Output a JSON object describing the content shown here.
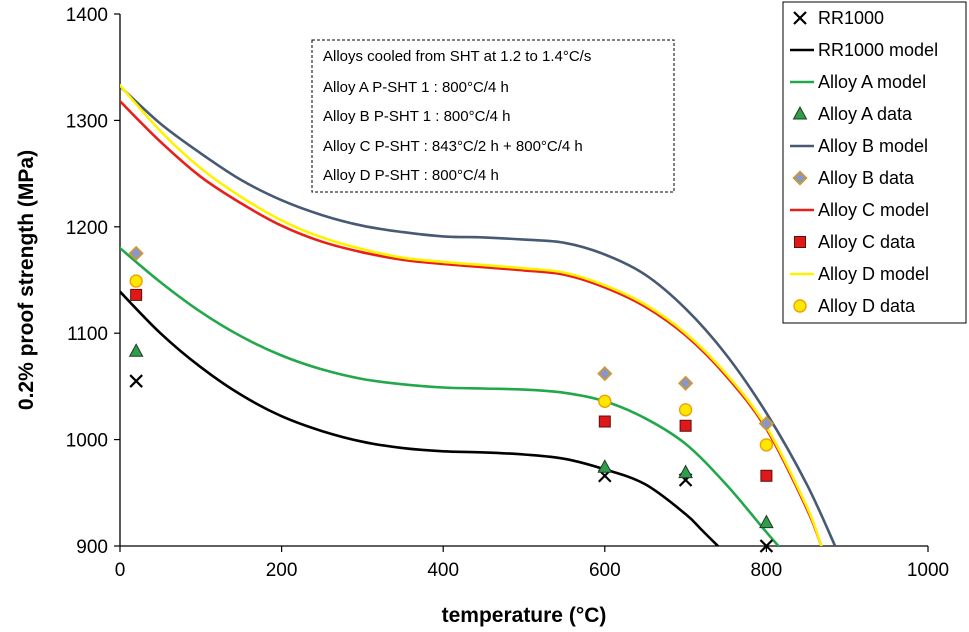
{
  "chart_data": {
    "type": "scatter",
    "xlabel": "temperature (°C)",
    "ylabel": "0.2% proof strength (MPa)",
    "xlim": [
      0,
      1000
    ],
    "ylim": [
      900,
      1400
    ],
    "xticks": [
      0,
      200,
      400,
      600,
      800,
      1000
    ],
    "yticks": [
      900,
      1000,
      1100,
      1200,
      1300,
      1400
    ],
    "xtick_labels": [
      "0",
      "200",
      "400",
      "600",
      "800",
      "1000"
    ],
    "ytick_labels": [
      "900",
      "1000",
      "1100",
      "1200",
      "1300",
      "1400"
    ],
    "grid": false,
    "legend_position": "top-right",
    "annotation": [
      "Alloys cooled from SHT at 1.2 to 1.4°C/s",
      "Alloy A P-SHT 1 : 800°C/4 h",
      "Alloy B P-SHT 1 : 800°C/4 h",
      "Alloy C P-SHT : 843°C/2 h + 800°C/4 h",
      "Alloy D P-SHT : 800°C/4 h"
    ],
    "series": [
      {
        "name": "RR1000",
        "kind": "marker",
        "marker": "x",
        "color": "#000000",
        "x": [
          20,
          600,
          700,
          800
        ],
        "y": [
          1055,
          966,
          962,
          900
        ]
      },
      {
        "name": "RR1000 model",
        "kind": "line",
        "color": "#000000",
        "x": [
          0,
          50,
          100,
          150,
          200,
          250,
          300,
          350,
          400,
          450,
          500,
          550,
          600,
          650,
          700,
          720,
          740
        ],
        "y": [
          1139,
          1100,
          1068,
          1042,
          1022,
          1008,
          998,
          992,
          989,
          988,
          986,
          982,
          972,
          958,
          930,
          915,
          900
        ]
      },
      {
        "name": "Alloy A model",
        "kind": "line",
        "color": "#22A84A",
        "x": [
          0,
          50,
          100,
          150,
          200,
          250,
          300,
          350,
          400,
          450,
          500,
          550,
          600,
          650,
          700,
          750,
          800,
          815
        ],
        "y": [
          1180,
          1148,
          1120,
          1097,
          1079,
          1066,
          1057,
          1052,
          1049,
          1048,
          1047,
          1044,
          1036,
          1020,
          996,
          958,
          913,
          900
        ]
      },
      {
        "name": "Alloy A data",
        "kind": "marker",
        "marker": "triangle",
        "color": "#2E9E4A",
        "x": [
          20,
          600,
          700,
          800
        ],
        "y": [
          1083,
          974,
          969,
          922
        ]
      },
      {
        "name": "Alloy B model",
        "kind": "line",
        "color": "#475A73",
        "x": [
          0,
          50,
          100,
          150,
          200,
          250,
          300,
          350,
          400,
          450,
          500,
          550,
          600,
          650,
          700,
          750,
          800,
          850,
          885
        ],
        "y": [
          1332,
          1297,
          1269,
          1244,
          1225,
          1211,
          1201,
          1195,
          1191,
          1190,
          1188,
          1185,
          1174,
          1155,
          1123,
          1080,
          1025,
          958,
          900
        ]
      },
      {
        "name": "Alloy B data",
        "kind": "marker",
        "marker": "diamond",
        "color": "#8896C8",
        "x": [
          20,
          600,
          700,
          800
        ],
        "y": [
          1175,
          1062,
          1053,
          1015
        ]
      },
      {
        "name": "Alloy C model",
        "kind": "line",
        "color": "#E8201A",
        "x": [
          0,
          50,
          100,
          150,
          200,
          250,
          300,
          350,
          400,
          450,
          500,
          550,
          600,
          650,
          700,
          750,
          800,
          850,
          868
        ],
        "y": [
          1318,
          1280,
          1247,
          1222,
          1201,
          1186,
          1176,
          1169,
          1165,
          1162,
          1159,
          1155,
          1143,
          1125,
          1098,
          1060,
          1010,
          935,
          900
        ]
      },
      {
        "name": "Alloy C data",
        "kind": "marker",
        "marker": "square",
        "color": "#E01818",
        "x": [
          20,
          600,
          700,
          800
        ],
        "y": [
          1136,
          1017,
          1013,
          966
        ]
      },
      {
        "name": "Alloy D model",
        "kind": "line",
        "color": "#FFF200",
        "x": [
          0,
          50,
          100,
          150,
          200,
          250,
          300,
          350,
          400,
          450,
          500,
          550,
          600,
          650,
          700,
          750,
          800,
          850,
          868
        ],
        "y": [
          1333,
          1290,
          1255,
          1228,
          1206,
          1190,
          1179,
          1171,
          1167,
          1164,
          1161,
          1157,
          1145,
          1127,
          1100,
          1062,
          1012,
          937,
          900
        ]
      },
      {
        "name": "Alloy D data",
        "kind": "marker",
        "marker": "circle",
        "color": "#FFE800",
        "x": [
          20,
          600,
          700,
          800
        ],
        "y": [
          1149,
          1036,
          1028,
          995
        ]
      }
    ]
  }
}
